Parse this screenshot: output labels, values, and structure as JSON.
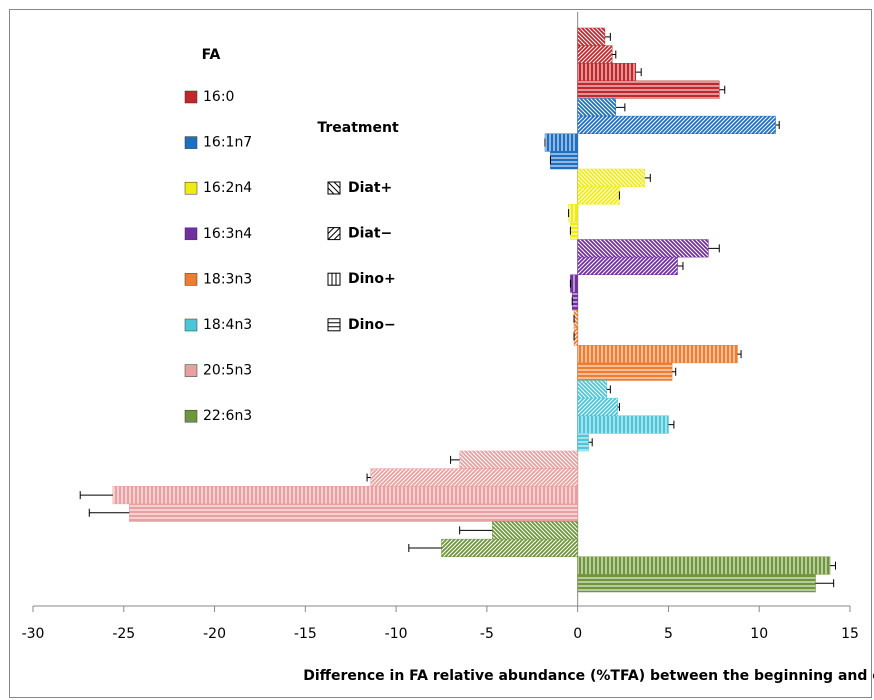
{
  "chart_data": {
    "type": "bar",
    "orientation": "horizontal",
    "x_label": "Difference in FA relative abundance (%TFA) between the beginning and end of the experiment",
    "legend_title": "FA",
    "series_legend_title": "Treatment",
    "categories": [
      "16:0",
      "16:1n7",
      "16:2n4",
      "16:3n4",
      "18:3n3",
      "18:4n3",
      "20:5n3",
      "22:6n3"
    ],
    "colors": [
      "#c0282d",
      "#1f6fc0",
      "#f0ec10",
      "#7030a0",
      "#ed7d31",
      "#4bc6d8",
      "#e8a0a0",
      "#70963c"
    ],
    "series": [
      {
        "name": "Diat+",
        "pattern": "backslash",
        "values": [
          1.5,
          2.1,
          3.7,
          7.2,
          -0.2,
          1.6,
          -6.5,
          -4.7
        ],
        "errors": [
          0.3,
          0.5,
          0.3,
          0.6,
          0,
          0.2,
          0.5,
          1.8
        ]
      },
      {
        "name": "Diat−",
        "pattern": "slash",
        "values": [
          1.9,
          10.9,
          2.3,
          5.5,
          -0.2,
          2.2,
          -11.4,
          -7.5
        ],
        "errors": [
          0.2,
          0.2,
          0,
          0.3,
          0,
          0.1,
          0.2,
          1.8
        ]
      },
      {
        "name": "Dino+",
        "pattern": "vertical",
        "values": [
          3.2,
          -1.8,
          -0.5,
          -0.4,
          8.8,
          5.0,
          -25.6,
          13.9
        ],
        "errors": [
          0.3,
          0,
          0,
          0,
          0.2,
          0.3,
          1.8,
          0.3
        ]
      },
      {
        "name": "Dino−",
        "pattern": "horizontal",
        "values": [
          7.8,
          -1.5,
          -0.4,
          -0.3,
          5.2,
          0.6,
          -24.7,
          13.1
        ],
        "errors": [
          0.3,
          0,
          0,
          0,
          0.2,
          0.2,
          2.2,
          1.0
        ]
      }
    ],
    "xlim": [
      -30,
      15
    ],
    "xticks": [
      -30,
      -25,
      -20,
      -15,
      -10,
      -5,
      0,
      5,
      10,
      15
    ]
  }
}
